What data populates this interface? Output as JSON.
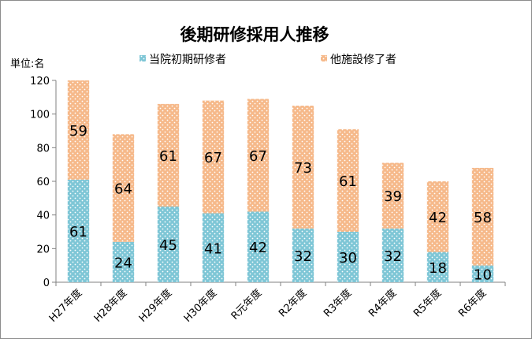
{
  "chart_data": {
    "type": "bar",
    "stacked": true,
    "title": "後期研修採用人推移",
    "ylabel": "単位:名",
    "xlabel": "",
    "ylim": [
      0,
      120
    ],
    "yticks": [
      0,
      20,
      40,
      60,
      80,
      100,
      120
    ],
    "grid": false,
    "legend_position": "top",
    "categories": [
      "H27年度",
      "H28年度",
      "H29年度",
      "H30年度",
      "R元年度",
      "R2年度",
      "R3年度",
      "R4年度",
      "R5年度",
      "R6年度"
    ],
    "series": [
      {
        "name": "当院初期研修者",
        "color": "#7ec6d6",
        "values": [
          61,
          24,
          45,
          41,
          42,
          32,
          30,
          32,
          18,
          10
        ]
      },
      {
        "name": "他施設修了者",
        "color": "#f6b98a",
        "values": [
          59,
          64,
          61,
          67,
          67,
          73,
          61,
          39,
          42,
          58
        ]
      }
    ]
  }
}
